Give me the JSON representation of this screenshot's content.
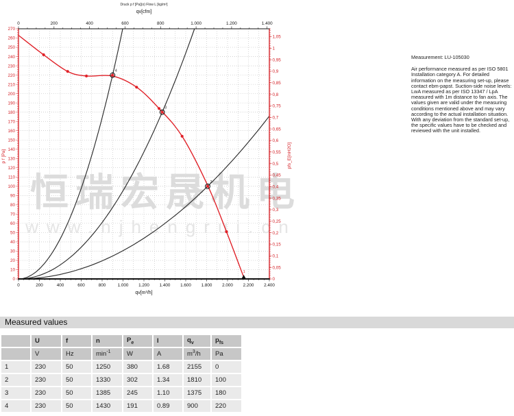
{
  "watermark": {
    "cn": "恒瑞宏晟机电",
    "url": "www.hjhengrui.cn"
  },
  "measurement_block": {
    "title": "Measurement: LU-105030",
    "body": "Air performance measured as per ISO 5801 Installation category A. For detailed information on the measuring set-up, please contact ebm-papst. Suction-side noise levels: LwA measured as per ISO 13347 / LpA measured with 1m distance to fan axis. The values given are valid under the measuring conditions mentioned above and may vary according to the actual installation situation. With any deviation from the standard set-up, the specific values have to be checked and reviewed with the unit installed."
  },
  "measured_values": {
    "section_title": "Measured values",
    "columns": [
      {
        "t": "U"
      },
      {
        "t": "f"
      },
      {
        "t": "n"
      },
      {
        "t": "P",
        "sub": "e"
      },
      {
        "t": "I"
      },
      {
        "t": "q",
        "sub": "v"
      },
      {
        "t": "p",
        "sub": "fs"
      }
    ],
    "units": [
      {
        "t": "V"
      },
      {
        "t": "Hz"
      },
      {
        "t": "min",
        "sup": "-1"
      },
      {
        "t": "W"
      },
      {
        "t": "A"
      },
      {
        "t": "m",
        "sup": "3",
        "tail": "/h"
      },
      {
        "t": "Pa"
      }
    ],
    "rows": [
      {
        "num": "1",
        "values": [
          "230",
          "50",
          "1250",
          "380",
          "1.68",
          "2155",
          "0"
        ]
      },
      {
        "num": "2",
        "values": [
          "230",
          "50",
          "1330",
          "302",
          "1.34",
          "1810",
          "100"
        ]
      },
      {
        "num": "3",
        "values": [
          "230",
          "50",
          "1385",
          "245",
          "1.10",
          "1375",
          "180"
        ]
      },
      {
        "num": "4",
        "values": [
          "230",
          "50",
          "1430",
          "191",
          "0.89",
          "900",
          "220"
        ]
      }
    ]
  },
  "chart_data": {
    "type": "line",
    "small_header": "Druck p f [Pa](o) Flow L [kg/m³]",
    "top_axis": {
      "label": "qv[cfm]",
      "min": 0,
      "max": 1412.6,
      "tick_step": 200
    },
    "bottom_axis": {
      "label": "qv[m³/h]",
      "min": 0,
      "max": 2400,
      "tick_step": 200
    },
    "left_axis": {
      "label": "p f [Pa]",
      "min": 0,
      "max": 270,
      "tick_step": 10
    },
    "right_axis": {
      "label": "pfs_E[inH2O]",
      "min": 0,
      "max": 1.05,
      "tick_step": 0.05,
      "pa_per_unit": 249.09
    },
    "fan_curve": [
      [
        0,
        263
      ],
      [
        240,
        242
      ],
      [
        470,
        224
      ],
      [
        650,
        219
      ],
      [
        900,
        219
      ],
      [
        1130,
        207
      ],
      [
        1345,
        184
      ],
      [
        1565,
        154
      ],
      [
        1810,
        101
      ],
      [
        1990,
        51
      ],
      [
        2155,
        2
      ]
    ],
    "dot_markers": [
      [
        240,
        242
      ],
      [
        470,
        224
      ],
      [
        650,
        219
      ],
      [
        1130,
        207
      ],
      [
        1345,
        184
      ],
      [
        1565,
        154
      ],
      [
        1990,
        51
      ]
    ],
    "operating_points": [
      {
        "n": "4",
        "qv": 900,
        "p": 220,
        "marker": "circle"
      },
      {
        "n": "3",
        "qv": 1375,
        "p": 180,
        "marker": "circle"
      },
      {
        "n": "2",
        "qv": 1810,
        "p": 100,
        "marker": "circle"
      },
      {
        "n": "1",
        "qv": 2155,
        "p": 0,
        "marker": "triangle"
      }
    ],
    "system_curves": [
      {
        "through": [
          900,
          220
        ]
      },
      {
        "through": [
          1375,
          180
        ]
      },
      {
        "through": [
          1810,
          100
        ]
      }
    ],
    "grid": true,
    "legend": "none",
    "colors": {
      "curve": "#e02128",
      "axis_red": "#d42127",
      "system": "#2b2b2b",
      "grid": "#b5b5b5",
      "watermark_cn": "#dcdcdc",
      "watermark_url": "#e5e5e5"
    }
  }
}
